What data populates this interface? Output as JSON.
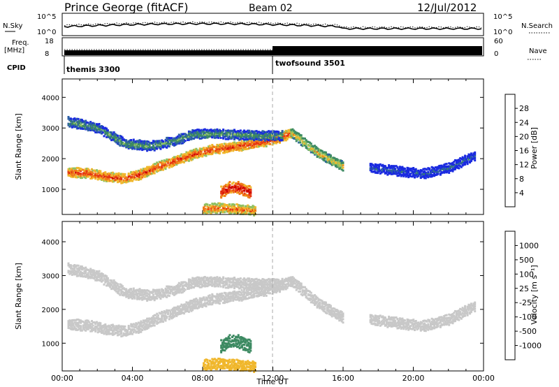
{
  "header": {
    "station": "Prince George (fitACF)",
    "beam": "Beam 02",
    "date": "12/Jul/2012"
  },
  "top_panels": {
    "nsky_label": "N.Sky",
    "nsky_ticks": [
      "10^5",
      "10^0"
    ],
    "nsearch_label": "N.Search",
    "nsearch_ticks": [
      "10^5",
      "10^0"
    ],
    "freq_label": "Freq.",
    "freq_unit": "[MHz]",
    "freq_ticks": [
      "18",
      "8"
    ],
    "nave_label": "Nave",
    "nave_ticks": [
      "60",
      "0"
    ],
    "cpid_label": "CPID",
    "cpid_entries": [
      {
        "name": "themis 3300",
        "start_hour": 0.0
      },
      {
        "name": "twofsound 3501",
        "start_hour": 12.0
      }
    ]
  },
  "chart_data": [
    {
      "type": "heatmap",
      "quantity": "Power",
      "ylabel": "Slant Range [km]",
      "xlabel": "",
      "x_range_hours": [
        0,
        24
      ],
      "ylim": [
        180,
        4600
      ],
      "yticks": [
        "1000",
        "2000",
        "3000",
        "4000"
      ],
      "colorbar": {
        "label": "Power [dB]",
        "tick_labels": [
          "4",
          "8",
          "12",
          "16",
          "20",
          "24",
          "28"
        ],
        "range": [
          0,
          32
        ],
        "colors": [
          "#1a2ae0",
          "#2c5fa6",
          "#3d8a62",
          "#8fc061",
          "#f0b72c",
          "#ee7a18",
          "#e63612",
          "#cc0000"
        ]
      },
      "echo_bands": [
        {
          "name": "main range band",
          "points": [
            [
              0.3,
              1550
            ],
            [
              1.5,
              1520
            ],
            [
              2.5,
              1400
            ],
            [
              3.5,
              1350
            ],
            [
              4.5,
              1500
            ],
            [
              5.5,
              1750
            ],
            [
              6.5,
              1950
            ],
            [
              7.5,
              2150
            ],
            [
              8.5,
              2300
            ],
            [
              9.5,
              2350
            ],
            [
              10.5,
              2450
            ],
            [
              11.5,
              2550
            ],
            [
              12.5,
              2700
            ],
            [
              13.0,
              2850
            ]
          ],
          "power_db": 26
        },
        {
          "name": "upper band",
          "points": [
            [
              0.3,
              3200
            ],
            [
              2.0,
              3000
            ],
            [
              3.5,
              2500
            ],
            [
              5.0,
              2400
            ],
            [
              6.5,
              2600
            ],
            [
              7.5,
              2800
            ],
            [
              9.0,
              2800
            ],
            [
              11.0,
              2750
            ],
            [
              12.5,
              2750
            ]
          ],
          "power_db": 12
        },
        {
          "name": "descending band",
          "points": [
            [
              13.0,
              2850
            ],
            [
              13.8,
              2500
            ],
            [
              14.5,
              2200
            ],
            [
              15.3,
              1950
            ],
            [
              16.0,
              1750
            ]
          ],
          "power_db": 18
        },
        {
          "name": "near-range patch",
          "points": [
            [
              9.0,
              900
            ],
            [
              9.5,
              1050
            ],
            [
              10.0,
              1050
            ],
            [
              10.7,
              900
            ]
          ],
          "power_db": 30
        },
        {
          "name": "low near-range echoes",
          "points": [
            [
              8.0,
              350
            ],
            [
              9.0,
              400
            ],
            [
              10.0,
              350
            ],
            [
              11.0,
              300
            ]
          ],
          "power_db": 24
        },
        {
          "name": "evening scatter",
          "points": [
            [
              17.5,
              1700
            ],
            [
              19.0,
              1600
            ],
            [
              20.5,
              1500
            ],
            [
              22.0,
              1700
            ],
            [
              23.5,
              2100
            ]
          ],
          "power_db": 6
        }
      ]
    },
    {
      "type": "heatmap",
      "quantity": "Velocity",
      "ylabel": "Slant Range [km]",
      "xlabel": "Time UT",
      "x_range_hours": [
        0,
        24
      ],
      "ylim": [
        180,
        4600
      ],
      "yticks": [
        "1000",
        "2000",
        "3000",
        "4000"
      ],
      "xticks": [
        "00:00",
        "04:00",
        "08:00",
        "12:00",
        "16:00",
        "20:00",
        "00:00"
      ],
      "colorbar": {
        "label": "Velocity [m s⁻¹]",
        "tick_labels": [
          "1000",
          "500",
          "100",
          "25",
          "-25",
          "-100",
          "-500",
          "-1000"
        ],
        "colors": [
          "#1a2ae0",
          "#2c5fa6",
          "#3d8a62",
          "#69c23a",
          "#c8c8c8",
          "#f0b72c",
          "#ee7a18",
          "#e63612",
          "#e6141a"
        ]
      },
      "echo_bands": [
        {
          "name": "main range band",
          "points": [
            [
              0.3,
              1550
            ],
            [
              1.5,
              1520
            ],
            [
              2.5,
              1400
            ],
            [
              3.5,
              1350
            ],
            [
              4.5,
              1500
            ],
            [
              5.5,
              1750
            ],
            [
              6.5,
              1950
            ],
            [
              7.5,
              2150
            ],
            [
              8.5,
              2300
            ],
            [
              9.5,
              2350
            ],
            [
              10.5,
              2450
            ],
            [
              11.5,
              2550
            ],
            [
              12.5,
              2700
            ],
            [
              13.0,
              2850
            ]
          ],
          "velocity_ms": 0
        },
        {
          "name": "upper band",
          "points": [
            [
              0.3,
              3200
            ],
            [
              2.0,
              3000
            ],
            [
              3.5,
              2500
            ],
            [
              5.0,
              2400
            ],
            [
              6.5,
              2600
            ],
            [
              7.5,
              2800
            ],
            [
              9.0,
              2800
            ],
            [
              11.0,
              2750
            ],
            [
              12.5,
              2750
            ]
          ],
          "velocity_ms": 0
        },
        {
          "name": "descending band",
          "points": [
            [
              13.0,
              2850
            ],
            [
              13.8,
              2500
            ],
            [
              14.5,
              2200
            ],
            [
              15.3,
              1950
            ],
            [
              16.0,
              1750
            ]
          ],
          "velocity_ms": 0
        },
        {
          "name": "near-range patch",
          "points": [
            [
              9.0,
              900
            ],
            [
              9.5,
              1050
            ],
            [
              10.0,
              1050
            ],
            [
              10.7,
              900
            ]
          ],
          "velocity_ms": 300
        },
        {
          "name": "low near-range echoes",
          "points": [
            [
              8.0,
              350
            ],
            [
              9.0,
              400
            ],
            [
              10.0,
              350
            ],
            [
              11.0,
              300
            ]
          ],
          "velocity_ms": -80
        },
        {
          "name": "evening scatter",
          "points": [
            [
              17.5,
              1700
            ],
            [
              19.0,
              1600
            ],
            [
              20.5,
              1500
            ],
            [
              22.0,
              1700
            ],
            [
              23.5,
              2100
            ]
          ],
          "velocity_ms": 0
        }
      ]
    }
  ]
}
